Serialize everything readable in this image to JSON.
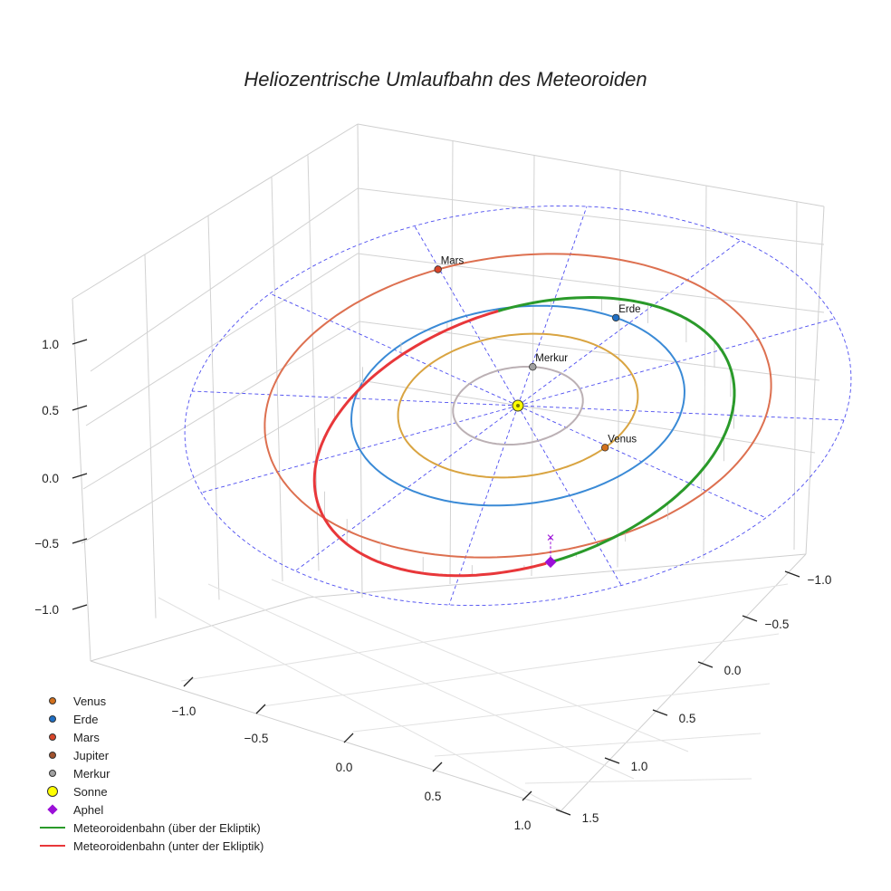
{
  "chart_data": {
    "type": "3d-line",
    "title": "Heliozentrische Umlaufbahn des Meteoroiden",
    "axes": {
      "x_ticks": [
        "−1.0",
        "−0.5",
        "0.0",
        "0.5",
        "1.0"
      ],
      "y_ticks": [
        "−1.0",
        "−0.5",
        "0.0",
        "0.5",
        "1.0",
        "1.5"
      ],
      "z_ticks": [
        "−1.0",
        "−0.5",
        "0.0",
        "0.5",
        "1.0"
      ],
      "x_range": [
        -1.3,
        1.3
      ],
      "y_range": [
        -1.2,
        1.6
      ],
      "z_range": [
        -1.2,
        1.2
      ]
    },
    "planets": [
      {
        "name": "Merkur",
        "orbit_radius_au": 0.39,
        "orbit_color": "#bbb0b4",
        "marker_color": "#a0a0a0",
        "label": "Merkur"
      },
      {
        "name": "Venus",
        "orbit_radius_au": 0.72,
        "orbit_color": "#d9a441",
        "marker_color": "#d2701c",
        "label": "Venus"
      },
      {
        "name": "Erde",
        "orbit_radius_au": 1.0,
        "orbit_color": "#3a8ad6",
        "marker_color": "#1f6fc4",
        "label": "Erde"
      },
      {
        "name": "Mars",
        "orbit_radius_au": 1.52,
        "orbit_color": "#dd7050",
        "marker_color": "#d8452a",
        "label": "Mars"
      }
    ],
    "meteoroid_orbit": {
      "perihelion_au": 0.98,
      "aphelion_au": 1.62,
      "segments": [
        {
          "name": "Meteoroidenbahn (über der Ekliptik)",
          "color": "#2a9a2a"
        },
        {
          "name": "Meteoroidenbahn (unter der Ekliptik)",
          "color": "#e8373a"
        }
      ],
      "aphelion_marker": {
        "name": "Aphel",
        "color": "#9b10d8"
      }
    },
    "ecliptic_grid": {
      "max_radius_au": 2.0,
      "color": "#4d4df0",
      "style": "dashed"
    },
    "legend": [
      {
        "label": "Venus",
        "kind": "dot",
        "color": "#d2701c"
      },
      {
        "label": "Erde",
        "kind": "dot",
        "color": "#1f6fc4"
      },
      {
        "label": "Mars",
        "kind": "dot",
        "color": "#d8452a"
      },
      {
        "label": "Jupiter",
        "kind": "dot",
        "color": "#a0522d"
      },
      {
        "label": "Merkur",
        "kind": "dot",
        "color": "#a0a0a0"
      },
      {
        "label": "Sonne",
        "kind": "bigdot",
        "color": "#ffff00"
      },
      {
        "label": "Aphel",
        "kind": "diamond",
        "color": "#9b10d8"
      },
      {
        "label": "Meteoroidenbahn (über der Ekliptik)",
        "kind": "line",
        "color": "#2a9a2a"
      },
      {
        "label": "Meteoroidenbahn (unter der Ekliptik)",
        "kind": "line",
        "color": "#e8373a"
      }
    ]
  }
}
